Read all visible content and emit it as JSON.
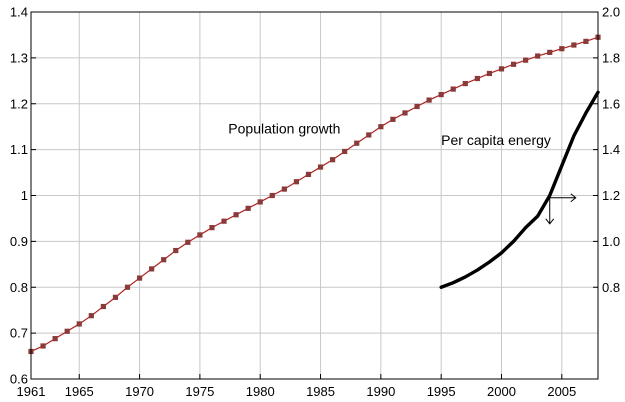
{
  "chart_data": {
    "type": "line",
    "title": "",
    "xlabel": "",
    "ylabel": "",
    "y2label": "",
    "xlim": [
      1961,
      2008
    ],
    "ylim": [
      0.6,
      1.4
    ],
    "y2lim": [
      0.4,
      2.0
    ],
    "grid": true,
    "x_ticks": [
      1961,
      1965,
      1970,
      1975,
      1980,
      1985,
      1990,
      1995,
      2000,
      2005
    ],
    "x_tick_labels": [
      "1961",
      "1965",
      "1970",
      "1975",
      "1980",
      "1985",
      "1990",
      "1995",
      "2000",
      "2005"
    ],
    "y_ticks": [
      0.6,
      0.7,
      0.8,
      0.9,
      1.0,
      1.1,
      1.2,
      1.3,
      1.4
    ],
    "y_tick_labels": [
      "0.6",
      "0.7",
      "0.8",
      "0.9",
      "1",
      "1.1",
      "1.2",
      "1.3",
      "1.4"
    ],
    "y2_ticks": [
      0.8,
      1.0,
      1.2,
      1.4,
      1.6,
      1.8,
      2.0
    ],
    "y2_tick_labels": [
      "0.8",
      "1.0",
      "1.2",
      "1.4",
      "1.6",
      "1.8",
      "2.0"
    ],
    "series": [
      {
        "name": "Population growth",
        "axis": "left",
        "color": "#b22222",
        "marker_color": "#8b3a3a",
        "marker": "square",
        "x": [
          1961,
          1962,
          1963,
          1964,
          1965,
          1966,
          1967,
          1968,
          1969,
          1970,
          1971,
          1972,
          1973,
          1974,
          1975,
          1976,
          1977,
          1978,
          1979,
          1980,
          1981,
          1982,
          1983,
          1984,
          1985,
          1986,
          1987,
          1988,
          1989,
          1990,
          1991,
          1992,
          1993,
          1994,
          1995,
          1996,
          1997,
          1998,
          1999,
          2000,
          2001,
          2002,
          2003,
          2004,
          2005,
          2006,
          2007,
          2008
        ],
        "values": [
          0.66,
          0.672,
          0.688,
          0.704,
          0.72,
          0.738,
          0.758,
          0.778,
          0.8,
          0.82,
          0.84,
          0.86,
          0.88,
          0.898,
          0.914,
          0.93,
          0.944,
          0.958,
          0.972,
          0.986,
          1.0,
          1.014,
          1.03,
          1.046,
          1.062,
          1.078,
          1.096,
          1.114,
          1.132,
          1.15,
          1.166,
          1.18,
          1.194,
          1.208,
          1.22,
          1.232,
          1.244,
          1.255,
          1.266,
          1.276,
          1.286,
          1.295,
          1.304,
          1.312,
          1.32,
          1.328,
          1.336,
          1.345
        ]
      },
      {
        "name": "Per capita energy",
        "axis": "right",
        "color": "#000000",
        "marker": "none",
        "x": [
          1995,
          1996,
          1997,
          1998,
          1999,
          2000,
          2001,
          2002,
          2003,
          2004,
          2005,
          2006,
          2007,
          2008
        ],
        "values": [
          0.8,
          0.82,
          0.845,
          0.875,
          0.91,
          0.95,
          1.0,
          1.06,
          1.11,
          1.2,
          1.33,
          1.46,
          1.56,
          1.65
        ]
      }
    ],
    "annotations": [
      {
        "text": "Population growth",
        "x": 1982,
        "y": 1.135,
        "axis": "left"
      },
      {
        "text": "Per capita energy",
        "x": 1995,
        "y": 1.42,
        "axis": "right"
      }
    ]
  }
}
